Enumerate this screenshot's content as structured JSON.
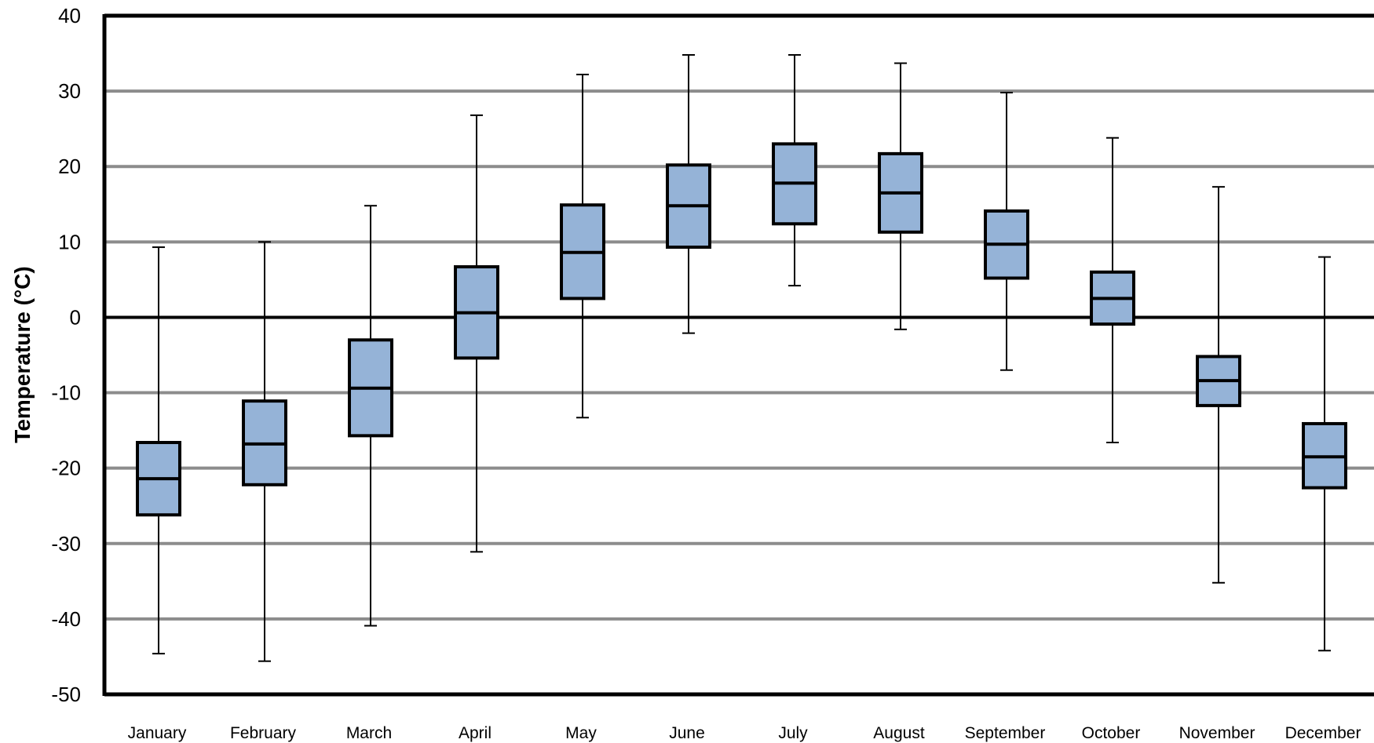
{
  "chart_data": {
    "type": "boxplot",
    "title": "",
    "xlabel": "",
    "ylabel": "Temperature (°C)",
    "ylim": [
      -50,
      40
    ],
    "yticks": [
      40,
      30,
      20,
      10,
      0,
      -10,
      -20,
      -30,
      -40,
      -50
    ],
    "grid": true,
    "zero_line": true,
    "categories": [
      "January",
      "February",
      "March",
      "April",
      "May",
      "June",
      "July",
      "August",
      "September",
      "October",
      "November",
      "December"
    ],
    "boxes": [
      {
        "min": -44.6,
        "q1": -26.2,
        "median": -21.4,
        "q3": -16.6,
        "max": 9.3
      },
      {
        "min": -45.6,
        "q1": -22.2,
        "median": -16.8,
        "q3": -11.1,
        "max": 10.0
      },
      {
        "min": -40.9,
        "q1": -15.7,
        "median": -9.4,
        "q3": -3.0,
        "max": 14.8
      },
      {
        "min": -31.1,
        "q1": -5.4,
        "median": 0.6,
        "q3": 6.7,
        "max": 26.8
      },
      {
        "min": -13.3,
        "q1": 2.5,
        "median": 8.6,
        "q3": 14.9,
        "max": 32.2
      },
      {
        "min": -2.1,
        "q1": 9.3,
        "median": 14.8,
        "q3": 20.2,
        "max": 34.8
      },
      {
        "min": 4.2,
        "q1": 12.4,
        "median": 17.8,
        "q3": 23.0,
        "max": 34.8
      },
      {
        "min": -1.6,
        "q1": 11.3,
        "median": 16.5,
        "q3": 21.7,
        "max": 33.7
      },
      {
        "min": -7.0,
        "q1": 5.2,
        "median": 9.7,
        "q3": 14.1,
        "max": 29.8
      },
      {
        "min": -16.6,
        "q1": -0.9,
        "median": 2.5,
        "q3": 6.0,
        "max": 23.8
      },
      {
        "min": -35.2,
        "q1": -11.7,
        "median": -8.4,
        "q3": -5.2,
        "max": 17.3
      },
      {
        "min": -44.2,
        "q1": -22.6,
        "median": -18.5,
        "q3": -14.1,
        "max": 8.0
      }
    ],
    "colors": {
      "box_fill": "#95B3D7",
      "box_stroke": "#000000",
      "grid": "#8C8C8C",
      "axis": "#000000"
    }
  }
}
